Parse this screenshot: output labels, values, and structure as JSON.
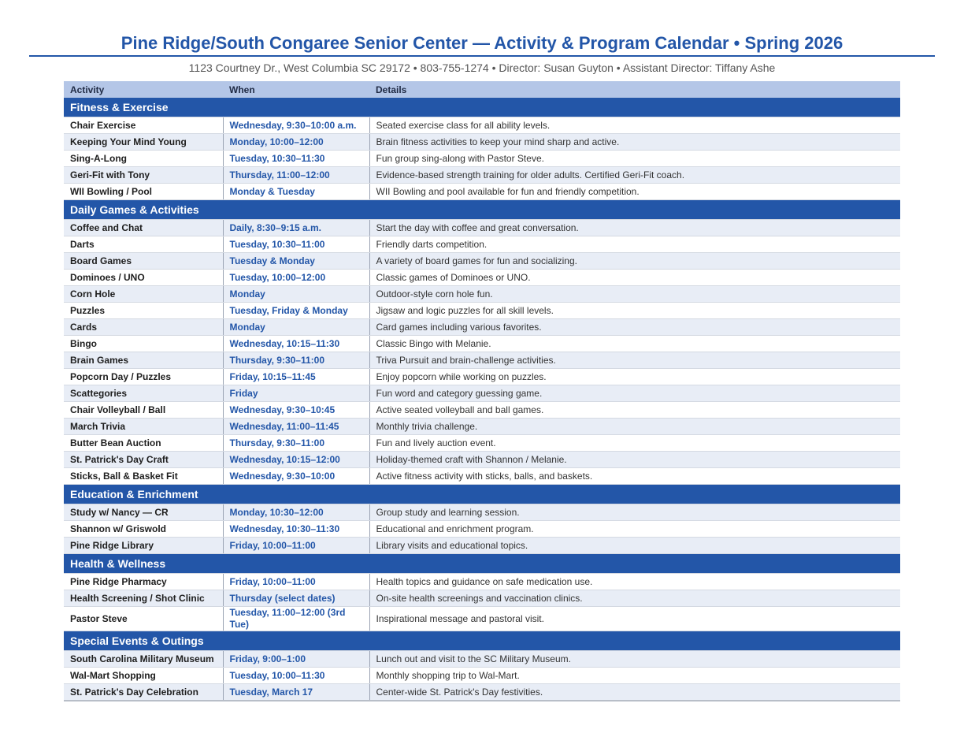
{
  "header": {
    "title": "Pine Ridge/South Congaree Senior Center — Activity & Program Calendar • Spring 2026",
    "subtitle": "1123 Courtney Dr., West Columbia SC 29172 • 803-755-1274 • Director: Susan Guyton • Assistant Director: Tiffany Ashe"
  },
  "table": {
    "columns": [
      "Activity",
      "When",
      "Details"
    ],
    "sections": [
      {
        "title": "Fitness & Exercise",
        "rows": [
          [
            "Chair Exercise",
            "Wednesday, 9:30–10:00 a.m.",
            "Seated exercise class for all ability levels."
          ],
          [
            "Keeping Your Mind Young",
            "Monday, 10:00–12:00",
            "Brain fitness activities to keep your mind sharp and active."
          ],
          [
            "Sing-A-Long",
            "Tuesday, 10:30–11:30",
            "Fun group sing-along with Pastor Steve."
          ],
          [
            "Geri-Fit with Tony",
            "Thursday, 11:00–12:00",
            "Evidence-based strength training for older adults. Certified Geri-Fit coach."
          ],
          [
            "WII Bowling / Pool",
            "Monday & Tuesday",
            "WII Bowling and pool available for fun and friendly competition."
          ]
        ]
      },
      {
        "title": "Daily Games & Activities",
        "rows": [
          [
            "Coffee and Chat",
            "Daily, 8:30–9:15 a.m.",
            "Start the day with coffee and great conversation."
          ],
          [
            "Darts",
            "Tuesday, 10:30–11:00",
            "Friendly darts competition."
          ],
          [
            "Board Games",
            "Tuesday & Monday",
            "A variety of board games for fun and socializing."
          ],
          [
            "Dominoes / UNO",
            "Tuesday, 10:00–12:00",
            "Classic games of Dominoes or UNO."
          ],
          [
            "Corn Hole",
            "Monday",
            "Outdoor-style corn hole fun."
          ],
          [
            "Puzzles",
            "Tuesday, Friday & Monday",
            "Jigsaw and logic puzzles for all skill levels."
          ],
          [
            "Cards",
            "Monday",
            "Card games including various favorites."
          ],
          [
            "Bingo",
            "Wednesday, 10:15–11:30",
            "Classic Bingo with Melanie."
          ],
          [
            "Brain Games",
            "Thursday, 9:30–11:00",
            "Triva Pursuit and brain-challenge activities."
          ],
          [
            "Popcorn Day / Puzzles",
            "Friday, 10:15–11:45",
            "Enjoy popcorn while working on puzzles."
          ],
          [
            "Scattegories",
            "Friday",
            "Fun word and category guessing game."
          ],
          [
            "Chair Volleyball / Ball",
            "Wednesday, 9:30–10:45",
            "Active seated volleyball and ball games."
          ],
          [
            "March Trivia",
            "Wednesday, 11:00–11:45",
            "Monthly trivia challenge."
          ],
          [
            "Butter Bean Auction",
            "Thursday, 9:30–11:00",
            "Fun and lively auction event."
          ],
          [
            "St. Patrick's Day Craft",
            "Wednesday, 10:15–12:00",
            "Holiday-themed craft with Shannon / Melanie."
          ],
          [
            "Sticks, Ball & Basket Fit",
            "Wednesday, 9:30–10:00",
            "Active fitness activity with sticks, balls, and baskets."
          ]
        ]
      },
      {
        "title": "Education & Enrichment",
        "rows": [
          [
            "Study w/ Nancy — CR",
            "Monday, 10:30–12:00",
            "Group study and learning session."
          ],
          [
            "Shannon w/ Griswold",
            "Wednesday, 10:30–11:30",
            "Educational and enrichment program."
          ],
          [
            "Pine Ridge Library",
            "Friday, 10:00–11:00",
            "Library visits and educational topics."
          ]
        ]
      },
      {
        "title": "Health & Wellness",
        "rows": [
          [
            "Pine Ridge Pharmacy",
            "Friday, 10:00–11:00",
            "Health topics and guidance on safe medication use."
          ],
          [
            "Health Screening / Shot Clinic",
            "Thursday (select dates)",
            "On-site health screenings and vaccination clinics."
          ],
          [
            "Pastor Steve",
            "Tuesday, 11:00–12:00 (3rd Tue)",
            "Inspirational message and pastoral visit."
          ]
        ]
      },
      {
        "title": "Special Events & Outings",
        "rows": [
          [
            "South Carolina Military Museum",
            "Friday, 9:00–1:00",
            "Lunch out and visit to the SC Military Museum."
          ],
          [
            "Wal-Mart Shopping",
            "Tuesday, 10:00–11:30",
            "Monthly shopping trip to Wal-Mart."
          ],
          [
            "St. Patrick's Day Celebration",
            "Tuesday, March 17",
            "Center-wide St. Patrick's Day festivities."
          ]
        ]
      }
    ]
  }
}
